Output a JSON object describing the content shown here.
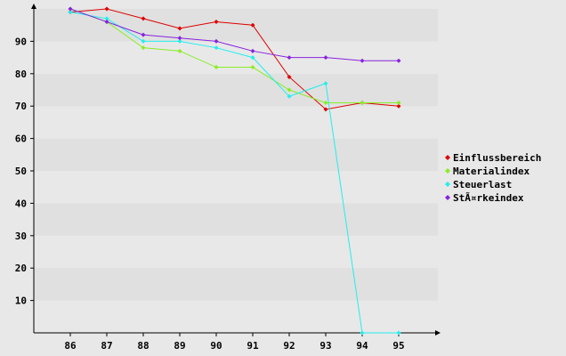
{
  "chart_data": {
    "type": "line",
    "title": "",
    "xlabel": "",
    "ylabel": "",
    "categories": [
      "86",
      "87",
      "88",
      "89",
      "90",
      "91",
      "92",
      "93",
      "94",
      "95"
    ],
    "y_ticks": [
      "10",
      "20",
      "30",
      "40",
      "50",
      "60",
      "70",
      "80",
      "90"
    ],
    "ylim": [
      0,
      100
    ],
    "grid": "horizontal alternating bands",
    "legend_position": "right",
    "series": [
      {
        "name": "Einflussbereich",
        "color": "#dd0000",
        "values": [
          99,
          100,
          97,
          94,
          96,
          95,
          79,
          69,
          71,
          70
        ]
      },
      {
        "name": "Materialindex",
        "color": "#88ee22",
        "values": [
          100,
          96,
          88,
          87,
          82,
          82,
          75,
          71,
          71,
          71
        ]
      },
      {
        "name": "Steuerlast",
        "color": "#22eeee",
        "values": [
          99,
          97,
          90,
          90,
          88,
          85,
          73,
          77,
          0,
          0
        ]
      },
      {
        "name": "StÃ¤rkeindex",
        "color": "#8822dd",
        "values": [
          100,
          96,
          92,
          91,
          90,
          87,
          85,
          85,
          84,
          84
        ]
      }
    ]
  }
}
